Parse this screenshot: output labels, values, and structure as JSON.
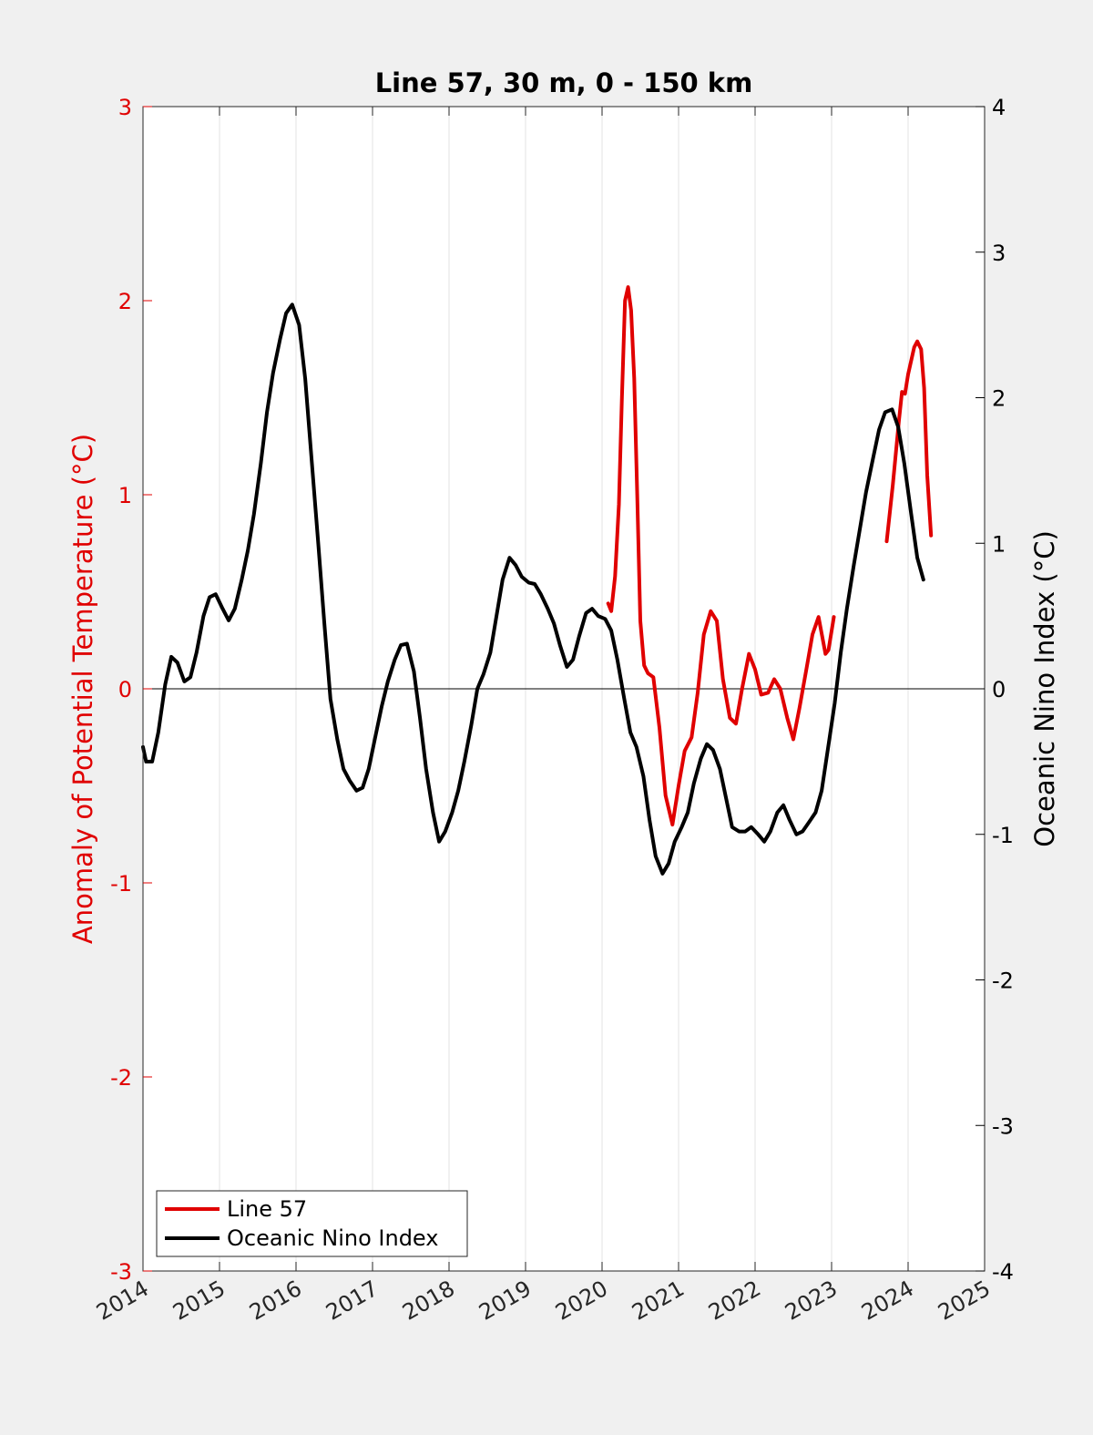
{
  "chart_data": {
    "type": "line",
    "title": "Line 57, 30 m, 0 - 150 km",
    "xlabel": "",
    "ylabel_left": "Anomaly of Potential Temperature (°C)",
    "ylabel_right": "Oceanic Nino Index (°C)",
    "xlim": [
      2014,
      2025
    ],
    "ylim_left": [
      -3,
      3
    ],
    "ylim_right": [
      -4,
      4
    ],
    "x_ticks": [
      "2014",
      "2015",
      "2016",
      "2017",
      "2018",
      "2019",
      "2020",
      "2021",
      "2022",
      "2023",
      "2024",
      "2025"
    ],
    "y_left_ticks": [
      "-3",
      "-2",
      "-1",
      "0",
      "1",
      "2",
      "3"
    ],
    "y_right_ticks": [
      "-4",
      "-3",
      "-2",
      "-1",
      "0",
      "1",
      "2",
      "3",
      "4"
    ],
    "grid": "vertical",
    "zero_line": true,
    "legend_position": "bottom-left",
    "colors": {
      "line57": "#e00000",
      "oni": "#000000",
      "left_axis": "#e00000",
      "right_axis": "#000000"
    },
    "series": [
      {
        "name": "Line 57",
        "axis": "left",
        "segments": [
          [
            [
              2020.08,
              0.44
            ],
            [
              2020.12,
              0.4
            ],
            [
              2020.17,
              0.58
            ],
            [
              2020.22,
              0.95
            ],
            [
              2020.26,
              1.5
            ],
            [
              2020.3,
              2.0
            ],
            [
              2020.34,
              2.07
            ],
            [
              2020.38,
              1.95
            ],
            [
              2020.42,
              1.6
            ],
            [
              2020.46,
              1.0
            ],
            [
              2020.5,
              0.35
            ],
            [
              2020.55,
              0.12
            ],
            [
              2020.6,
              0.08
            ],
            [
              2020.67,
              0.06
            ],
            [
              2020.75,
              -0.2
            ],
            [
              2020.83,
              -0.55
            ],
            [
              2020.92,
              -0.7
            ],
            [
              2021.0,
              -0.5
            ],
            [
              2021.08,
              -0.32
            ],
            [
              2021.17,
              -0.25
            ],
            [
              2021.25,
              -0.02
            ],
            [
              2021.33,
              0.28
            ],
            [
              2021.42,
              0.4
            ],
            [
              2021.5,
              0.35
            ],
            [
              2021.58,
              0.05
            ],
            [
              2021.67,
              -0.15
            ],
            [
              2021.75,
              -0.18
            ],
            [
              2021.83,
              0.0
            ],
            [
              2021.92,
              0.18
            ],
            [
              2022.0,
              0.1
            ],
            [
              2022.08,
              -0.03
            ],
            [
              2022.17,
              -0.02
            ],
            [
              2022.25,
              0.05
            ],
            [
              2022.33,
              0.0
            ],
            [
              2022.42,
              -0.15
            ],
            [
              2022.5,
              -0.26
            ],
            [
              2022.58,
              -0.1
            ],
            [
              2022.67,
              0.1
            ],
            [
              2022.75,
              0.28
            ],
            [
              2022.83,
              0.37
            ],
            [
              2022.92,
              0.18
            ],
            [
              2022.96,
              0.2
            ],
            [
              2023.03,
              0.37
            ]
          ],
          [
            [
              2023.72,
              0.76
            ],
            [
              2023.8,
              1.05
            ],
            [
              2023.88,
              1.38
            ],
            [
              2023.92,
              1.53
            ],
            [
              2023.96,
              1.52
            ],
            [
              2024.0,
              1.62
            ],
            [
              2024.08,
              1.76
            ],
            [
              2024.12,
              1.79
            ],
            [
              2024.17,
              1.75
            ],
            [
              2024.21,
              1.55
            ],
            [
              2024.25,
              1.1
            ],
            [
              2024.3,
              0.79
            ]
          ]
        ]
      },
      {
        "name": "Oceanic Nino Index",
        "axis": "right",
        "points": [
          [
            2014.0,
            -0.4
          ],
          [
            2014.04,
            -0.5
          ],
          [
            2014.12,
            -0.5
          ],
          [
            2014.2,
            -0.3
          ],
          [
            2014.29,
            0.03
          ],
          [
            2014.37,
            0.22
          ],
          [
            2014.45,
            0.18
          ],
          [
            2014.54,
            0.05
          ],
          [
            2014.62,
            0.08
          ],
          [
            2014.7,
            0.25
          ],
          [
            2014.79,
            0.5
          ],
          [
            2014.87,
            0.63
          ],
          [
            2014.95,
            0.65
          ],
          [
            2015.04,
            0.55
          ],
          [
            2015.12,
            0.47
          ],
          [
            2015.2,
            0.55
          ],
          [
            2015.29,
            0.75
          ],
          [
            2015.37,
            0.95
          ],
          [
            2015.45,
            1.2
          ],
          [
            2015.54,
            1.55
          ],
          [
            2015.62,
            1.9
          ],
          [
            2015.7,
            2.17
          ],
          [
            2015.79,
            2.4
          ],
          [
            2015.87,
            2.58
          ],
          [
            2015.95,
            2.64
          ],
          [
            2016.04,
            2.5
          ],
          [
            2016.12,
            2.13
          ],
          [
            2016.2,
            1.6
          ],
          [
            2016.29,
            1.0
          ],
          [
            2016.37,
            0.45
          ],
          [
            2016.45,
            -0.07
          ],
          [
            2016.54,
            -0.35
          ],
          [
            2016.62,
            -0.55
          ],
          [
            2016.7,
            -0.63
          ],
          [
            2016.79,
            -0.7
          ],
          [
            2016.87,
            -0.68
          ],
          [
            2016.95,
            -0.55
          ],
          [
            2017.04,
            -0.32
          ],
          [
            2017.12,
            -0.12
          ],
          [
            2017.2,
            0.05
          ],
          [
            2017.29,
            0.2
          ],
          [
            2017.37,
            0.3
          ],
          [
            2017.45,
            0.31
          ],
          [
            2017.54,
            0.12
          ],
          [
            2017.62,
            -0.2
          ],
          [
            2017.7,
            -0.55
          ],
          [
            2017.79,
            -0.85
          ],
          [
            2017.87,
            -1.05
          ],
          [
            2017.95,
            -0.98
          ],
          [
            2018.04,
            -0.85
          ],
          [
            2018.12,
            -0.7
          ],
          [
            2018.2,
            -0.5
          ],
          [
            2018.29,
            -0.25
          ],
          [
            2018.37,
            0.0
          ],
          [
            2018.45,
            0.1
          ],
          [
            2018.54,
            0.25
          ],
          [
            2018.62,
            0.5
          ],
          [
            2018.7,
            0.75
          ],
          [
            2018.79,
            0.9
          ],
          [
            2018.87,
            0.85
          ],
          [
            2018.95,
            0.77
          ],
          [
            2019.04,
            0.73
          ],
          [
            2019.12,
            0.72
          ],
          [
            2019.2,
            0.65
          ],
          [
            2019.29,
            0.55
          ],
          [
            2019.37,
            0.45
          ],
          [
            2019.45,
            0.3
          ],
          [
            2019.54,
            0.15
          ],
          [
            2019.62,
            0.2
          ],
          [
            2019.7,
            0.36
          ],
          [
            2019.79,
            0.52
          ],
          [
            2019.87,
            0.55
          ],
          [
            2019.95,
            0.5
          ],
          [
            2020.04,
            0.48
          ],
          [
            2020.12,
            0.4
          ],
          [
            2020.2,
            0.2
          ],
          [
            2020.29,
            -0.07
          ],
          [
            2020.37,
            -0.3
          ],
          [
            2020.45,
            -0.4
          ],
          [
            2020.54,
            -0.6
          ],
          [
            2020.62,
            -0.9
          ],
          [
            2020.7,
            -1.15
          ],
          [
            2020.79,
            -1.27
          ],
          [
            2020.87,
            -1.2
          ],
          [
            2020.95,
            -1.05
          ],
          [
            2021.04,
            -0.95
          ],
          [
            2021.12,
            -0.85
          ],
          [
            2021.2,
            -0.65
          ],
          [
            2021.29,
            -0.48
          ],
          [
            2021.37,
            -0.38
          ],
          [
            2021.45,
            -0.42
          ],
          [
            2021.54,
            -0.55
          ],
          [
            2021.62,
            -0.75
          ],
          [
            2021.7,
            -0.95
          ],
          [
            2021.79,
            -0.98
          ],
          [
            2021.87,
            -0.98
          ],
          [
            2021.95,
            -0.95
          ],
          [
            2022.04,
            -1.0
          ],
          [
            2022.12,
            -1.05
          ],
          [
            2022.2,
            -0.98
          ],
          [
            2022.29,
            -0.85
          ],
          [
            2022.37,
            -0.8
          ],
          [
            2022.45,
            -0.9
          ],
          [
            2022.54,
            -1.0
          ],
          [
            2022.62,
            -0.98
          ],
          [
            2022.7,
            -0.92
          ],
          [
            2022.79,
            -0.85
          ],
          [
            2022.87,
            -0.7
          ],
          [
            2022.95,
            -0.42
          ],
          [
            2023.04,
            -0.1
          ],
          [
            2023.12,
            0.25
          ],
          [
            2023.2,
            0.55
          ],
          [
            2023.29,
            0.85
          ],
          [
            2023.37,
            1.1
          ],
          [
            2023.45,
            1.35
          ],
          [
            2023.54,
            1.58
          ],
          [
            2023.62,
            1.78
          ],
          [
            2023.7,
            1.9
          ],
          [
            2023.79,
            1.92
          ],
          [
            2023.87,
            1.8
          ],
          [
            2023.95,
            1.55
          ],
          [
            2024.04,
            1.2
          ],
          [
            2024.12,
            0.9
          ],
          [
            2024.2,
            0.75
          ]
        ]
      }
    ]
  }
}
